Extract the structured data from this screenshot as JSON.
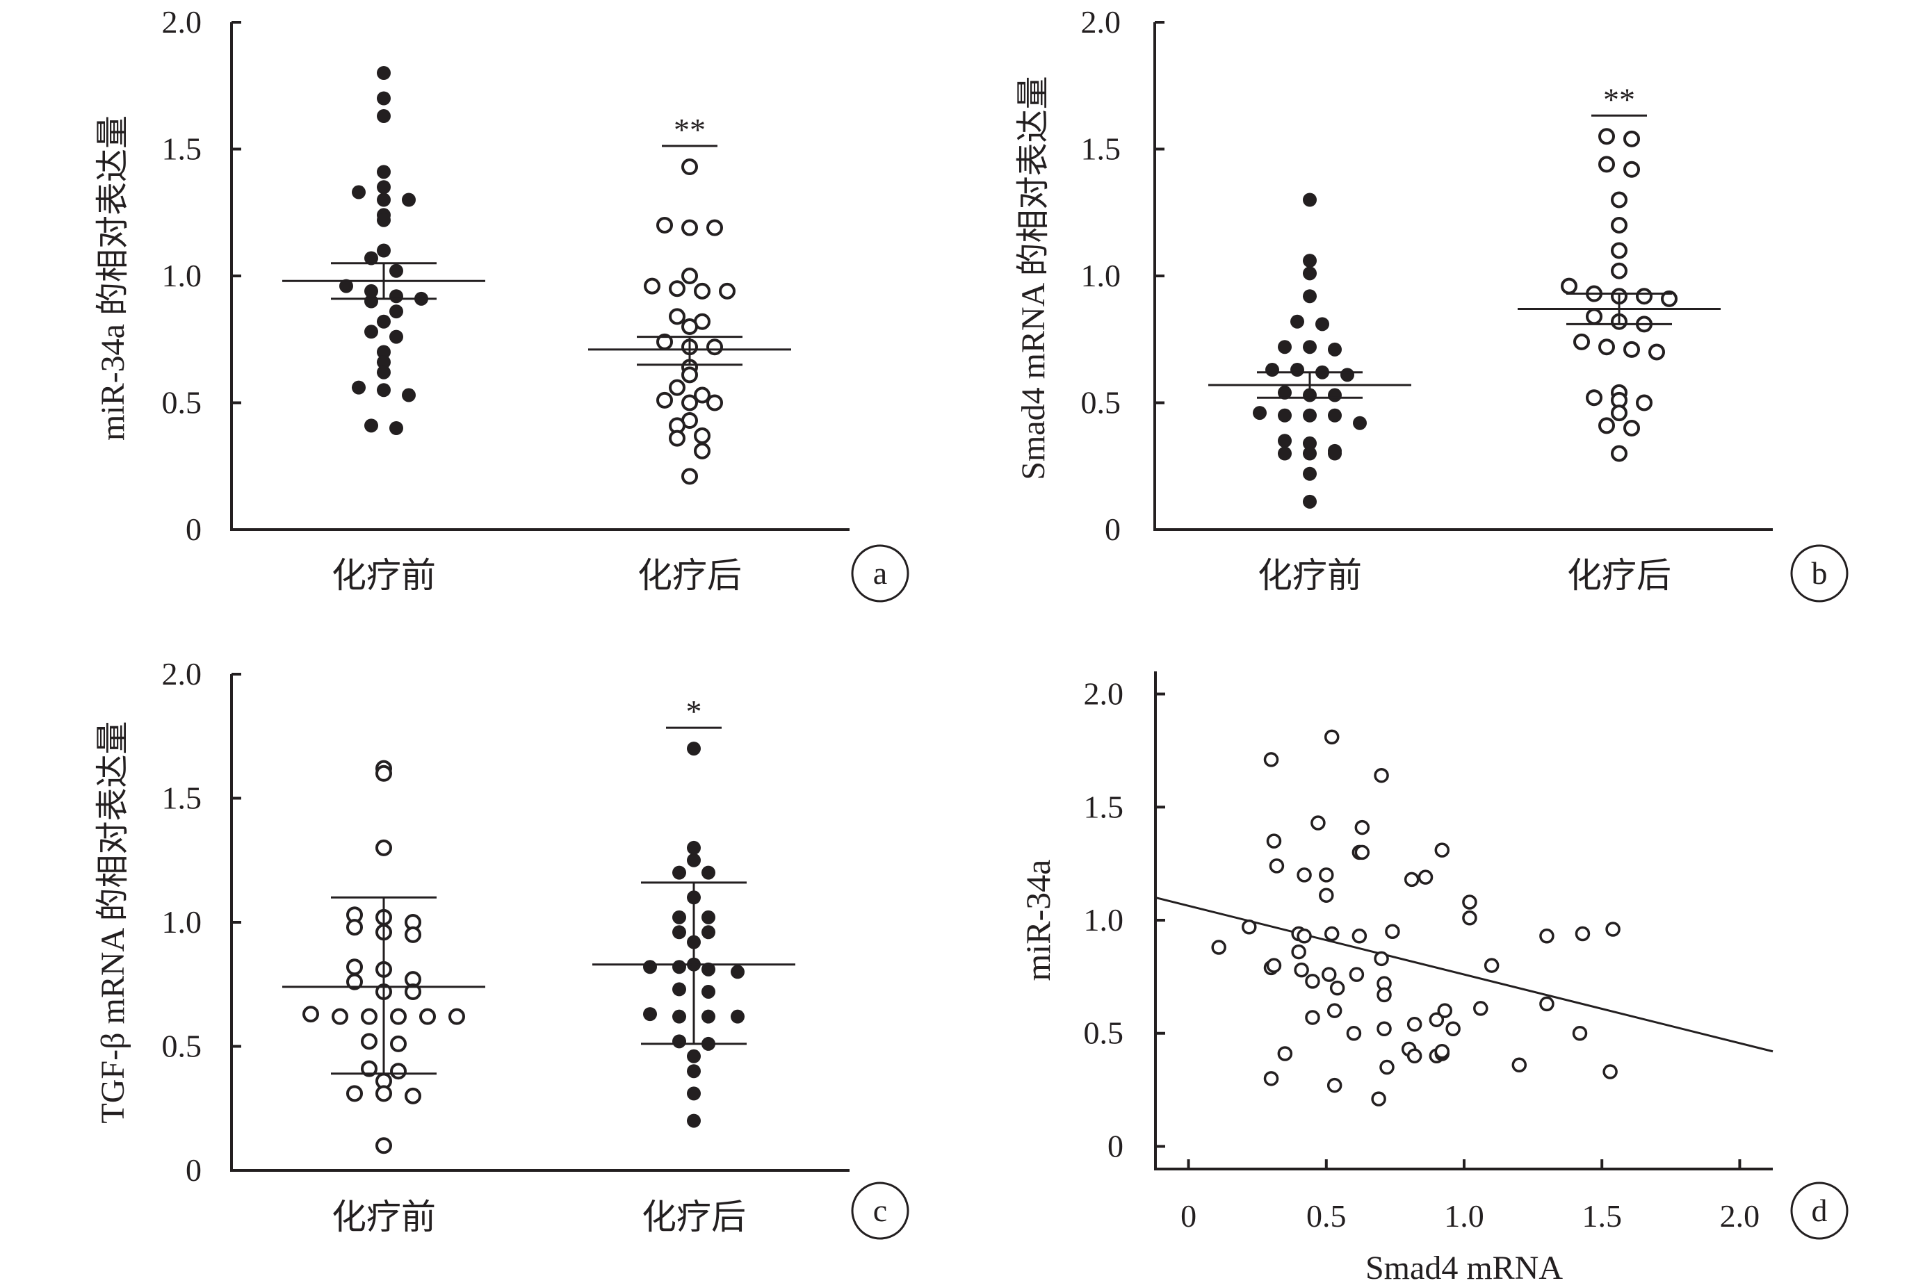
{
  "chart_data": [
    {
      "panel": "a",
      "type": "scatter",
      "ylabel": "miR-34a 的相对表达量",
      "ylim": [
        0,
        2.0
      ],
      "yticks": [
        "0",
        "0.5",
        "1.0",
        "1.5",
        "2.0"
      ],
      "categories": [
        "化疗前",
        "化疗后"
      ],
      "significance": "**",
      "groups": [
        {
          "category": "化疗前",
          "filled": true,
          "mean": 0.98,
          "err_low": 0.91,
          "err_high": 1.05,
          "values": [
            1.8,
            1.7,
            1.63,
            1.41,
            1.35,
            1.33,
            1.3,
            1.3,
            1.24,
            1.22,
            1.1,
            1.07,
            1.02,
            0.96,
            0.94,
            0.92,
            0.91,
            0.9,
            0.86,
            0.82,
            0.78,
            0.76,
            0.7,
            0.66,
            0.62,
            0.56,
            0.55,
            0.53,
            0.41,
            0.4
          ]
        },
        {
          "category": "化疗后",
          "filled": false,
          "mean": 0.71,
          "err_low": 0.65,
          "err_high": 0.76,
          "values": [
            1.43,
            1.2,
            1.19,
            1.19,
            1.0,
            0.96,
            0.95,
            0.94,
            0.94,
            0.84,
            0.82,
            0.8,
            0.74,
            0.72,
            0.72,
            0.64,
            0.61,
            0.56,
            0.53,
            0.51,
            0.5,
            0.5,
            0.43,
            0.41,
            0.37,
            0.36,
            0.31,
            0.21
          ]
        }
      ]
    },
    {
      "panel": "b",
      "type": "scatter",
      "ylabel": "Smad4 mRNA 的相对表达量",
      "ylim": [
        0,
        2.0
      ],
      "yticks": [
        "0",
        "0.5",
        "1.0",
        "1.5",
        "2.0"
      ],
      "categories": [
        "化疗前",
        "化疗后"
      ],
      "significance": "**",
      "groups": [
        {
          "category": "化疗前",
          "filled": true,
          "mean": 0.57,
          "err_low": 0.52,
          "err_high": 0.62,
          "values": [
            1.3,
            1.06,
            1.01,
            0.92,
            0.82,
            0.81,
            0.72,
            0.72,
            0.71,
            0.63,
            0.63,
            0.62,
            0.61,
            0.54,
            0.53,
            0.53,
            0.46,
            0.45,
            0.45,
            0.45,
            0.42,
            0.35,
            0.34,
            0.31,
            0.3,
            0.3,
            0.3,
            0.22,
            0.11
          ]
        },
        {
          "category": "化疗后",
          "filled": false,
          "mean": 0.87,
          "err_low": 0.81,
          "err_high": 0.93,
          "values": [
            1.55,
            1.54,
            1.44,
            1.42,
            1.3,
            1.2,
            1.1,
            1.02,
            0.96,
            0.93,
            0.92,
            0.92,
            0.91,
            0.84,
            0.82,
            0.81,
            0.74,
            0.72,
            0.71,
            0.7,
            0.54,
            0.52,
            0.51,
            0.5,
            0.46,
            0.41,
            0.4,
            0.3
          ]
        }
      ]
    },
    {
      "panel": "c",
      "type": "scatter",
      "ylabel": "TGF-β mRNA 的相对表达量",
      "ylim": [
        0,
        2.0
      ],
      "yticks": [
        "0",
        "0.5",
        "1.0",
        "1.5",
        "2.0"
      ],
      "categories": [
        "化疗前",
        "化疗后"
      ],
      "significance": "*",
      "groups": [
        {
          "category": "化疗前",
          "filled": false,
          "mean": 0.74,
          "err_low": 0.39,
          "err_high": 1.1,
          "values": [
            1.62,
            1.6,
            1.3,
            1.03,
            1.02,
            1.0,
            0.98,
            0.96,
            0.95,
            0.82,
            0.81,
            0.77,
            0.76,
            0.72,
            0.72,
            0.63,
            0.62,
            0.62,
            0.62,
            0.62,
            0.62,
            0.52,
            0.51,
            0.41,
            0.4,
            0.36,
            0.31,
            0.31,
            0.3,
            0.1
          ]
        },
        {
          "category": "化疗后",
          "filled": true,
          "mean": 0.83,
          "err_low": 0.51,
          "err_high": 1.16,
          "values": [
            1.7,
            1.3,
            1.25,
            1.2,
            1.2,
            1.1,
            1.02,
            1.02,
            0.96,
            0.96,
            0.92,
            0.83,
            0.82,
            0.82,
            0.81,
            0.8,
            0.73,
            0.72,
            0.63,
            0.62,
            0.62,
            0.62,
            0.52,
            0.51,
            0.46,
            0.4,
            0.31,
            0.2
          ]
        }
      ]
    },
    {
      "panel": "d",
      "type": "scatter",
      "xlabel": "Smad4 mRNA",
      "ylabel": "miR-34a",
      "xlim": [
        -0.12,
        2.12
      ],
      "ylim": [
        -0.1,
        2.1
      ],
      "xticks": [
        "0",
        "0.5",
        "1.0",
        "1.5",
        "2.0"
      ],
      "yticks": [
        "0",
        "0.5",
        "1.0",
        "1.5",
        "2.0"
      ],
      "trendline": {
        "x": [
          -0.12,
          2.12
        ],
        "y": [
          1.1,
          0.42
        ]
      },
      "points": [
        {
          "x": 0.11,
          "y": 0.88
        },
        {
          "x": 0.22,
          "y": 0.97
        },
        {
          "x": 0.3,
          "y": 0.3
        },
        {
          "x": 0.3,
          "y": 0.79
        },
        {
          "x": 0.31,
          "y": 0.8
        },
        {
          "x": 0.3,
          "y": 1.71
        },
        {
          "x": 0.31,
          "y": 1.35
        },
        {
          "x": 0.32,
          "y": 1.24
        },
        {
          "x": 0.35,
          "y": 0.41
        },
        {
          "x": 0.4,
          "y": 0.86
        },
        {
          "x": 0.4,
          "y": 0.94
        },
        {
          "x": 0.42,
          "y": 0.93
        },
        {
          "x": 0.41,
          "y": 0.78
        },
        {
          "x": 0.42,
          "y": 1.2
        },
        {
          "x": 0.45,
          "y": 0.73
        },
        {
          "x": 0.45,
          "y": 0.57
        },
        {
          "x": 0.47,
          "y": 1.43
        },
        {
          "x": 0.5,
          "y": 1.2
        },
        {
          "x": 0.5,
          "y": 1.11
        },
        {
          "x": 0.51,
          "y": 0.76
        },
        {
          "x": 0.52,
          "y": 0.94
        },
        {
          "x": 0.52,
          "y": 1.81
        },
        {
          "x": 0.53,
          "y": 0.27
        },
        {
          "x": 0.53,
          "y": 0.6
        },
        {
          "x": 0.54,
          "y": 0.7
        },
        {
          "x": 0.6,
          "y": 0.5
        },
        {
          "x": 0.61,
          "y": 0.76
        },
        {
          "x": 0.62,
          "y": 0.93
        },
        {
          "x": 0.62,
          "y": 1.3
        },
        {
          "x": 0.63,
          "y": 1.41
        },
        {
          "x": 0.63,
          "y": 1.3
        },
        {
          "x": 0.7,
          "y": 1.64
        },
        {
          "x": 0.7,
          "y": 0.83
        },
        {
          "x": 0.71,
          "y": 0.72
        },
        {
          "x": 0.71,
          "y": 0.67
        },
        {
          "x": 0.71,
          "y": 0.52
        },
        {
          "x": 0.72,
          "y": 0.35
        },
        {
          "x": 0.69,
          "y": 0.21
        },
        {
          "x": 0.74,
          "y": 0.95
        },
        {
          "x": 0.8,
          "y": 0.43
        },
        {
          "x": 0.81,
          "y": 1.18
        },
        {
          "x": 0.82,
          "y": 0.4
        },
        {
          "x": 0.82,
          "y": 0.54
        },
        {
          "x": 0.86,
          "y": 1.19
        },
        {
          "x": 0.9,
          "y": 0.56
        },
        {
          "x": 0.9,
          "y": 0.4
        },
        {
          "x": 0.92,
          "y": 0.41
        },
        {
          "x": 0.92,
          "y": 0.42
        },
        {
          "x": 0.92,
          "y": 1.31
        },
        {
          "x": 0.93,
          "y": 0.6
        },
        {
          "x": 0.96,
          "y": 0.52
        },
        {
          "x": 1.02,
          "y": 1.01
        },
        {
          "x": 1.02,
          "y": 1.08
        },
        {
          "x": 1.06,
          "y": 0.61
        },
        {
          "x": 1.1,
          "y": 0.8
        },
        {
          "x": 1.2,
          "y": 0.36
        },
        {
          "x": 1.3,
          "y": 0.93
        },
        {
          "x": 1.3,
          "y": 0.63
        },
        {
          "x": 1.42,
          "y": 0.5
        },
        {
          "x": 1.43,
          "y": 0.94
        },
        {
          "x": 1.53,
          "y": 0.33
        },
        {
          "x": 1.54,
          "y": 0.96
        }
      ]
    }
  ],
  "panel_labels": [
    "a",
    "b",
    "c",
    "d"
  ],
  "colors": {
    "ink": "#231f20",
    "background": "#ffffff"
  }
}
